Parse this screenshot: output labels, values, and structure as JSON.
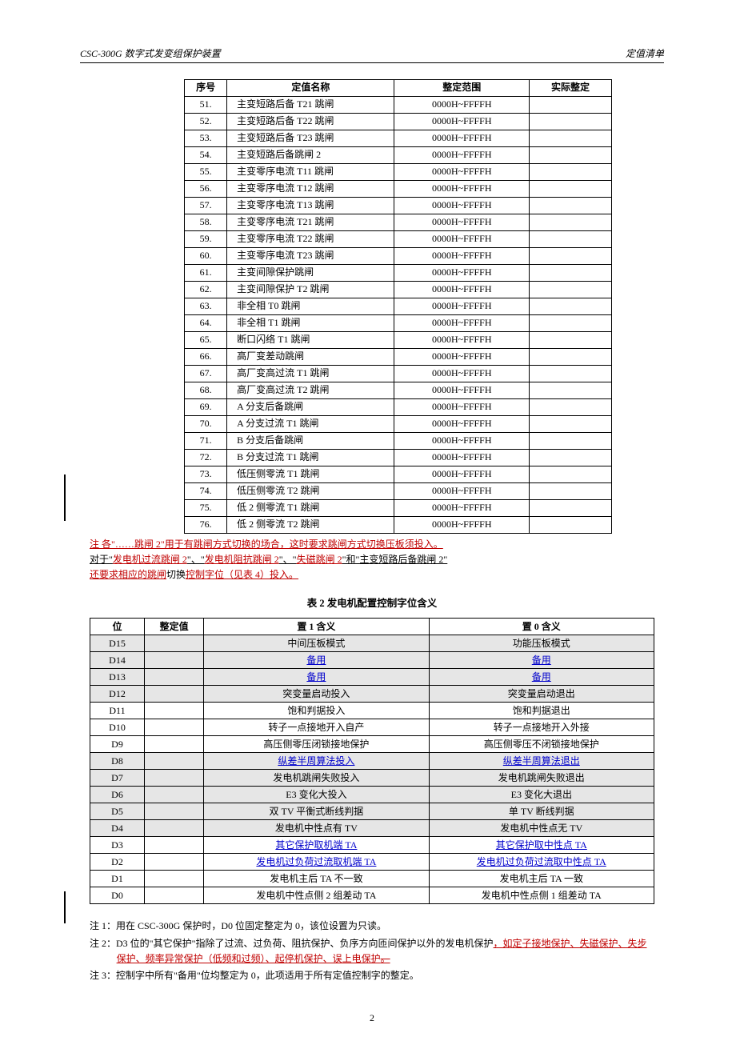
{
  "header": {
    "left": "CSC-300G 数字式发变组保护装置",
    "right": "定值清单"
  },
  "table1": {
    "columns": [
      "序号",
      "定值名称",
      "整定范围",
      "实际整定"
    ],
    "default_range": "0000H~FFFFH",
    "rows": [
      {
        "seq": "51.",
        "name": "主变短路后备 T21 跳闸"
      },
      {
        "seq": "52.",
        "name": "主变短路后备 T22 跳闸"
      },
      {
        "seq": "53.",
        "name": "主变短路后备 T23 跳闸"
      },
      {
        "seq": "54.",
        "name": "主变短路后备跳闸 2"
      },
      {
        "seq": "55.",
        "name": "主变零序电流 T11 跳闸"
      },
      {
        "seq": "56.",
        "name": "主变零序电流 T12 跳闸"
      },
      {
        "seq": "57.",
        "name": "主变零序电流 T13 跳闸"
      },
      {
        "seq": "58.",
        "name": "主变零序电流 T21 跳闸"
      },
      {
        "seq": "59.",
        "name": "主变零序电流 T22 跳闸"
      },
      {
        "seq": "60.",
        "name": "主变零序电流 T23 跳闸"
      },
      {
        "seq": "61.",
        "name": "主变间隙保护跳闸"
      },
      {
        "seq": "62.",
        "name": "主变间隙保护 T2 跳闸"
      },
      {
        "seq": "63.",
        "name": "非全相 T0 跳闸"
      },
      {
        "seq": "64.",
        "name": "非全相 T1 跳闸"
      },
      {
        "seq": "65.",
        "name": "断口闪络 T1 跳闸"
      },
      {
        "seq": "66.",
        "name": "高厂变差动跳闸"
      },
      {
        "seq": "67.",
        "name": "高厂变高过流 T1 跳闸"
      },
      {
        "seq": "68.",
        "name": "高厂变高过流 T2 跳闸"
      },
      {
        "seq": "69.",
        "name": "A 分支后备跳闸"
      },
      {
        "seq": "70.",
        "name": "A 分支过流 T1 跳闸"
      },
      {
        "seq": "71.",
        "name": "B 分支后备跳闸"
      },
      {
        "seq": "72.",
        "name": "B 分支过流 T1 跳闸"
      },
      {
        "seq": "73.",
        "name": "低压侧零流 T1 跳闸"
      },
      {
        "seq": "74.",
        "name": "低压侧零流 T2 跳闸"
      },
      {
        "seq": "75.",
        "name": "低 2 侧零流 T1 跳闸"
      },
      {
        "seq": "76.",
        "name": "低 2 侧零流 T2 跳闸"
      }
    ]
  },
  "note1": {
    "prefix": "注 各\"……跳闸 2\"用于有跳闸方式切换的场合，这时要求跳闸方式切换压板须投入。",
    "line2_pre": "对于\"",
    "links": [
      "发电机过流跳闸 2",
      "发电机阻抗跳闸 2",
      "失磁跳闸 2"
    ],
    "mid": "\"和\"主变短路后备跳闸 2\"",
    "line3": "还要求相应的跳闸",
    "line3_mid": "切换",
    "line3_end": "控制字位（见表 4）投入。"
  },
  "table2": {
    "title": "表 2  发电机配置控制字位含义",
    "columns": [
      "位",
      "整定值",
      "置 1 含义",
      "置 0 含义"
    ],
    "rows": [
      {
        "bit": "D15",
        "m1": "中间压板模式",
        "m0": "功能压板模式",
        "shaded": true,
        "link": false
      },
      {
        "bit": "D14",
        "m1": "备用",
        "m0": "备用",
        "shaded": true,
        "link": true
      },
      {
        "bit": "D13",
        "m1": "备用",
        "m0": "备用",
        "shaded": true,
        "link": true
      },
      {
        "bit": "D12",
        "m1": "突变量启动投入",
        "m0": "突变量启动退出",
        "shaded": true,
        "link": false
      },
      {
        "bit": "D11",
        "m1": "饱和判据投入",
        "m0": "饱和判据退出",
        "shaded": false,
        "link": false
      },
      {
        "bit": "D10",
        "m1": "转子一点接地开入自产",
        "m0": "转子一点接地开入外接",
        "shaded": false,
        "link": false
      },
      {
        "bit": "D9",
        "m1": "高压侧零压闭锁接地保护",
        "m0": "高压侧零压不闭锁接地保护",
        "shaded": false,
        "link": false
      },
      {
        "bit": "D8",
        "m1": "纵差半周算法投入",
        "m0": "纵差半周算法退出",
        "shaded": true,
        "link": true
      },
      {
        "bit": "D7",
        "m1": "发电机跳闸失败投入",
        "m0": "发电机跳闸失败退出",
        "shaded": true,
        "link": false
      },
      {
        "bit": "D6",
        "m1": "E3 变化大投入",
        "m0": "E3 变化大退出",
        "shaded": true,
        "link": false
      },
      {
        "bit": "D5",
        "m1": "双 TV 平衡式断线判据",
        "m0": "单 TV 断线判据",
        "shaded": true,
        "link": false
      },
      {
        "bit": "D4",
        "m1": "发电机中性点有 TV",
        "m0": "发电机中性点无 TV",
        "shaded": true,
        "link": false
      },
      {
        "bit": "D3",
        "m1": "其它保护取机端 TA",
        "m0": "其它保护取中性点 TA",
        "shaded": false,
        "link": true
      },
      {
        "bit": "D2",
        "m1": "发电机过负荷过流取机端 TA",
        "m0": "发电机过负荷过流取中性点 TA",
        "shaded": false,
        "link": true
      },
      {
        "bit": "D1",
        "m1": "发电机主后 TA 不一致",
        "m0": "发电机主后 TA 一致",
        "shaded": false,
        "link": false
      },
      {
        "bit": "D0",
        "m1": "发电机中性点侧 2 组差动 TA",
        "m0": "发电机中性点侧 1 组差动 TA",
        "shaded": false,
        "link": false
      }
    ]
  },
  "footnotes": {
    "n1": "注 1：用在 CSC-300G 保护时，D0 位固定整定为 0，该位设置为只读。",
    "n2_pre": "注 2：D3 位的\"其它保护\"指除了过流、过负荷、阻抗保护、负序方向匝间保护以外的发电机保护",
    "n2_red": "，如定子接地保护、失磁保护、失步保护、频率异常保护（低频和过频）、起停机保护、误上电保护",
    "n2_strike": "。",
    "n3": "注 3：控制字中所有\"备用\"位均整定为 0，此项适用于所有定值控制字的整定。"
  },
  "page": "2"
}
